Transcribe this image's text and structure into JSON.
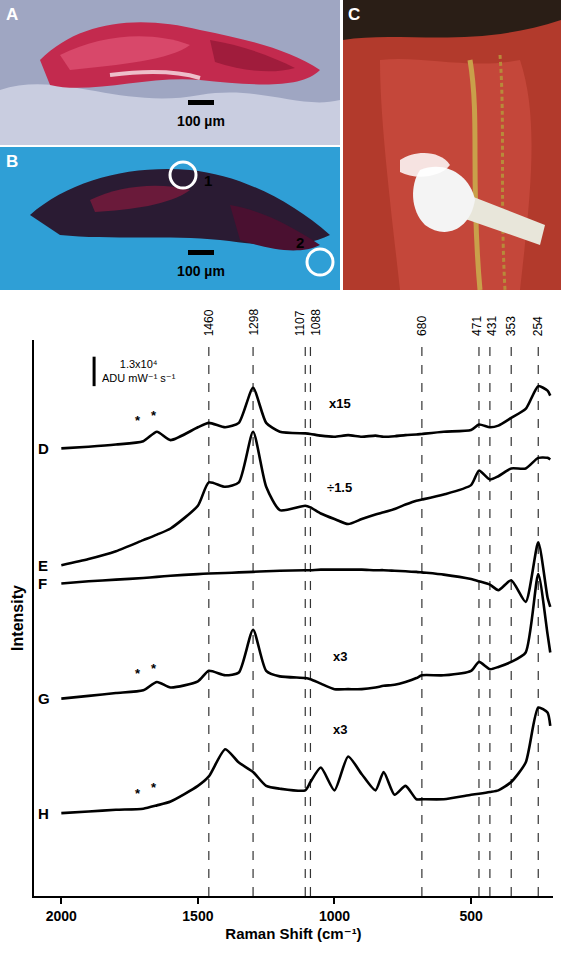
{
  "images": [
    {
      "letter": "A",
      "scale_bar": "100 µm"
    },
    {
      "letter": "B",
      "scale_bar": "100 µm",
      "spots": [
        "1",
        "2"
      ]
    },
    {
      "letter": "C"
    }
  ],
  "chart_data": {
    "type": "line",
    "x_label": "Raman Shift (cm⁻¹)",
    "y_label": "Intensity",
    "xlim": [
      2100,
      200
    ],
    "xticks": [
      2000,
      1500,
      1000,
      500
    ],
    "ylim": [
      0,
      100
    ],
    "yticks": [],
    "tick_labels": "x",
    "grid": false,
    "reference_lines": [
      1460,
      1298,
      1107,
      1088,
      680,
      471,
      431,
      353,
      254
    ],
    "x": [
      2000,
      1900,
      1800,
      1700,
      1650,
      1600,
      1500,
      1460,
      1400,
      1350,
      1298,
      1250,
      1200,
      1107,
      1088,
      1050,
      1000,
      950,
      900,
      850,
      820,
      780,
      740,
      700,
      680,
      600,
      500,
      471,
      431,
      400,
      353,
      300,
      254,
      220,
      210
    ],
    "series": [
      {
        "name": "D",
        "color": "#000000",
        "values": [
          80.5,
          80.8,
          81.2,
          81.8,
          83.5,
          82,
          84.3,
          85.1,
          84.3,
          85.1,
          91.4,
          85.1,
          83.5,
          83.2,
          83.1,
          82.8,
          82.6,
          82.9,
          82.6,
          82.8,
          82.6,
          82.7,
          82.9,
          83,
          83.1,
          83.5,
          83.8,
          84.8,
          84.3,
          84.6,
          86,
          87.6,
          91.7,
          90.9,
          90
        ]
      },
      {
        "name": "E",
        "color": "#000000",
        "values": [
          59.5,
          60.6,
          62,
          64,
          65,
          66.1,
          70.2,
          74.4,
          73.6,
          74.4,
          83.5,
          73.6,
          69.4,
          70.2,
          69.9,
          68.8,
          67.8,
          66.9,
          67.8,
          68.6,
          69,
          69.6,
          70.4,
          71.1,
          71.3,
          72.2,
          73.9,
          76.5,
          74.9,
          75.5,
          76.9,
          76.9,
          78.8,
          78.8,
          78.5
        ]
      },
      {
        "name": "F",
        "color": "#000000",
        "values": [
          56.2,
          56.6,
          56.9,
          57.2,
          57.4,
          57.6,
          57.9,
          58,
          58.1,
          58.2,
          58.3,
          58.4,
          58.5,
          58.6,
          58.6,
          58.7,
          58.7,
          58.7,
          58.7,
          58.6,
          58.6,
          58.5,
          58.4,
          58.3,
          58.2,
          57.8,
          57,
          56.6,
          56,
          55,
          56.8,
          52.9,
          63.6,
          53.7,
          52
        ]
      },
      {
        "name": "G",
        "color": "#000000",
        "values": [
          35.5,
          36,
          36.5,
          37,
          38.5,
          37.5,
          38.6,
          40.5,
          39.7,
          40.2,
          47.9,
          40.5,
          39.5,
          39.2,
          39,
          38.2,
          37.2,
          37.2,
          37.2,
          37.5,
          37.8,
          38,
          38.5,
          39.2,
          39.7,
          39.7,
          40.5,
          42.1,
          40.8,
          41.2,
          42.1,
          43.8,
          57.9,
          47.1,
          43.8
        ]
      },
      {
        "name": "H",
        "color": "#000000",
        "values": [
          14.9,
          15.2,
          15.5,
          15.7,
          16.3,
          17,
          19.8,
          21.5,
          26.4,
          24,
          22.3,
          19.8,
          19.3,
          19,
          20.5,
          23.1,
          19,
          25.1,
          21.9,
          19,
          22.3,
          18.2,
          19.8,
          17.4,
          17.4,
          17.4,
          18.2,
          18.4,
          18.7,
          19,
          20.5,
          24,
          33.9,
          33,
          30.6
        ]
      }
    ],
    "annotations": [
      {
        "text": "x15",
        "x": 980,
        "y": 88.5
      },
      {
        "text": "÷1.5",
        "x": 980,
        "y": 73.5
      },
      {
        "text": "x3",
        "x": 980,
        "y": 43
      },
      {
        "text": "x3",
        "x": 980,
        "y": 30
      },
      {
        "text": "*",
        "x": 1720,
        "y": 85.5
      },
      {
        "text": "*",
        "x": 1660,
        "y": 86.5
      },
      {
        "text": "*",
        "x": 1720,
        "y": 40
      },
      {
        "text": "*",
        "x": 1660,
        "y": 41
      },
      {
        "text": "*",
        "x": 1720,
        "y": 18.5
      },
      {
        "text": "*",
        "x": 1660,
        "y": 19.5
      }
    ],
    "scale_bar": {
      "label": [
        "1.3x10⁴",
        "ADU mW⁻¹ s⁻¹"
      ],
      "x": 1880,
      "y": [
        91.7,
        97
      ]
    }
  }
}
